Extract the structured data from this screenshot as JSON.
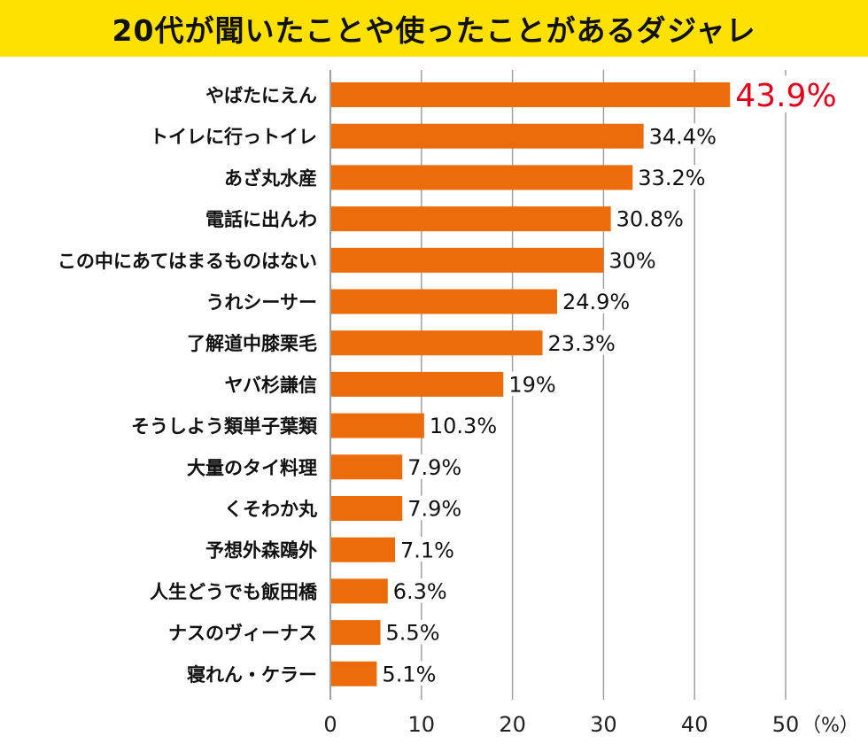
{
  "chart_data": {
    "type": "bar",
    "orientation": "horizontal",
    "title": "20代が聞いたことや使ったことがあるダジャレ",
    "categories": [
      "やばたにえん",
      "トイレに行っトイレ",
      "あざ丸水産",
      "電話に出んわ",
      "この中にあてはまるものはない",
      "うれシーサー",
      "了解道中膝栗毛",
      "ヤバ杉謙信",
      "そうしよう類単子葉類",
      "大量のタイ料理",
      "くそわか丸",
      "予想外森鴎外",
      "人生どうでも飯田橋",
      "ナスのヴィーナス",
      "寝れん・ケラー"
    ],
    "values": [
      43.9,
      34.4,
      33.2,
      30.8,
      30,
      24.9,
      23.3,
      19,
      10.3,
      7.9,
      7.9,
      7.1,
      6.3,
      5.5,
      5.1
    ],
    "value_labels": [
      "43.9",
      "34.4",
      "33.2",
      "30.8",
      "30",
      "24.9",
      "23.3",
      "19",
      "10.3",
      "7.9",
      "7.9",
      "7.1",
      "6.3",
      "5.5",
      "5.1"
    ],
    "value_suffix": "%",
    "xlim": [
      0,
      50
    ],
    "xticks": [
      "0",
      "10",
      "20",
      "30",
      "40",
      "50"
    ],
    "xunit": "（%）",
    "grid": true,
    "colors": {
      "bar": "#ec6c0c",
      "highlight_label": "#e2001a",
      "title_band": "#ffe100",
      "grid": "#a0a0a0"
    }
  }
}
